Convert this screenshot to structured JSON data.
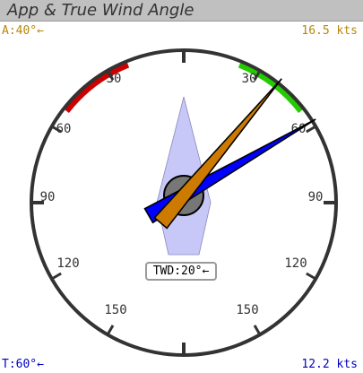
{
  "title": "App & True Wind Angle",
  "apparent": {
    "angle_text": "A:40°←",
    "speed_text": "16.5 kts",
    "angle_deg": -40,
    "color": "#cc7a00"
  },
  "true_wind": {
    "angle_text": "T:60°←",
    "speed_text": "12.2 kts",
    "angle_deg": 60,
    "color": "#0000ff"
  },
  "twd": {
    "text": "TWD:20°←"
  },
  "ring_labels": [
    "30",
    "60",
    "90",
    "120",
    "150",
    "30",
    "60",
    "90",
    "120",
    "150"
  ],
  "zones": {
    "port_color": "#cc0000",
    "starboard_color": "#22cc00"
  },
  "colors": {
    "heading_marker": "#c8c8f8",
    "ring": "#333333"
  }
}
